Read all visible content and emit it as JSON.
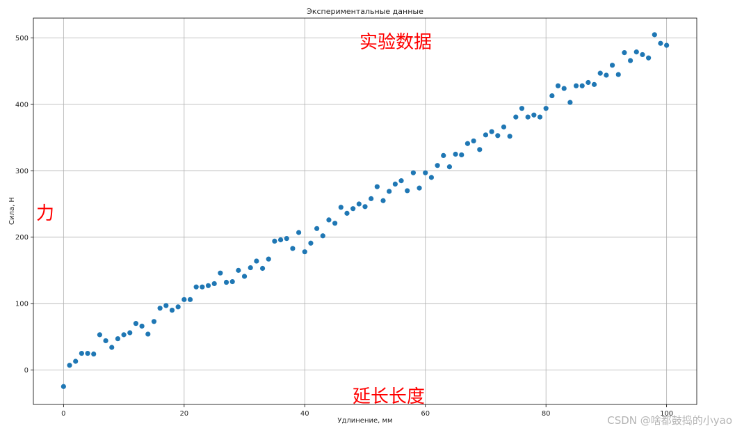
{
  "chart_data": {
    "type": "scatter",
    "title": "Экспериментальные данные",
    "xlabel": "Удлинение, мм",
    "ylabel": "Сила, Н",
    "xlim": [
      -5,
      105
    ],
    "ylim": [
      -52,
      530
    ],
    "xticks": [
      0,
      20,
      40,
      60,
      80,
      100
    ],
    "yticks": [
      0,
      100,
      200,
      300,
      400,
      500
    ],
    "grid": true,
    "color": "#1f77b4",
    "points": [
      {
        "x": 0,
        "y": -25
      },
      {
        "x": 1,
        "y": 7
      },
      {
        "x": 2,
        "y": 13
      },
      {
        "x": 3,
        "y": 25
      },
      {
        "x": 4,
        "y": 25
      },
      {
        "x": 5,
        "y": 24
      },
      {
        "x": 6,
        "y": 53
      },
      {
        "x": 7,
        "y": 44
      },
      {
        "x": 8,
        "y": 34
      },
      {
        "x": 9,
        "y": 47
      },
      {
        "x": 10,
        "y": 53
      },
      {
        "x": 11,
        "y": 56
      },
      {
        "x": 12,
        "y": 70
      },
      {
        "x": 13,
        "y": 66
      },
      {
        "x": 14,
        "y": 54
      },
      {
        "x": 15,
        "y": 73
      },
      {
        "x": 16,
        "y": 93
      },
      {
        "x": 17,
        "y": 97
      },
      {
        "x": 18,
        "y": 90
      },
      {
        "x": 19,
        "y": 95
      },
      {
        "x": 20,
        "y": 106
      },
      {
        "x": 21,
        "y": 106
      },
      {
        "x": 22,
        "y": 125
      },
      {
        "x": 23,
        "y": 125
      },
      {
        "x": 24,
        "y": 127
      },
      {
        "x": 25,
        "y": 130
      },
      {
        "x": 26,
        "y": 146
      },
      {
        "x": 27,
        "y": 132
      },
      {
        "x": 28,
        "y": 133
      },
      {
        "x": 29,
        "y": 150
      },
      {
        "x": 30,
        "y": 141
      },
      {
        "x": 31,
        "y": 154
      },
      {
        "x": 32,
        "y": 164
      },
      {
        "x": 33,
        "y": 153
      },
      {
        "x": 34,
        "y": 167
      },
      {
        "x": 35,
        "y": 194
      },
      {
        "x": 36,
        "y": 196
      },
      {
        "x": 37,
        "y": 198
      },
      {
        "x": 38,
        "y": 183
      },
      {
        "x": 39,
        "y": 207
      },
      {
        "x": 40,
        "y": 178
      },
      {
        "x": 41,
        "y": 191
      },
      {
        "x": 42,
        "y": 213
      },
      {
        "x": 43,
        "y": 202
      },
      {
        "x": 44,
        "y": 226
      },
      {
        "x": 45,
        "y": 221
      },
      {
        "x": 46,
        "y": 245
      },
      {
        "x": 47,
        "y": 236
      },
      {
        "x": 48,
        "y": 243
      },
      {
        "x": 49,
        "y": 250
      },
      {
        "x": 50,
        "y": 246
      },
      {
        "x": 51,
        "y": 258
      },
      {
        "x": 52,
        "y": 276
      },
      {
        "x": 53,
        "y": 255
      },
      {
        "x": 54,
        "y": 269
      },
      {
        "x": 55,
        "y": 280
      },
      {
        "x": 56,
        "y": 285
      },
      {
        "x": 57,
        "y": 270
      },
      {
        "x": 58,
        "y": 297
      },
      {
        "x": 59,
        "y": 274
      },
      {
        "x": 60,
        "y": 297
      },
      {
        "x": 61,
        "y": 290
      },
      {
        "x": 62,
        "y": 308
      },
      {
        "x": 63,
        "y": 323
      },
      {
        "x": 64,
        "y": 306
      },
      {
        "x": 65,
        "y": 325
      },
      {
        "x": 66,
        "y": 324
      },
      {
        "x": 67,
        "y": 341
      },
      {
        "x": 68,
        "y": 345
      },
      {
        "x": 69,
        "y": 332
      },
      {
        "x": 70,
        "y": 354
      },
      {
        "x": 71,
        "y": 359
      },
      {
        "x": 72,
        "y": 353
      },
      {
        "x": 73,
        "y": 366
      },
      {
        "x": 74,
        "y": 352
      },
      {
        "x": 75,
        "y": 381
      },
      {
        "x": 76,
        "y": 394
      },
      {
        "x": 77,
        "y": 381
      },
      {
        "x": 78,
        "y": 384
      },
      {
        "x": 79,
        "y": 381
      },
      {
        "x": 80,
        "y": 394
      },
      {
        "x": 81,
        "y": 413
      },
      {
        "x": 82,
        "y": 428
      },
      {
        "x": 83,
        "y": 424
      },
      {
        "x": 84,
        "y": 403
      },
      {
        "x": 85,
        "y": 428
      },
      {
        "x": 86,
        "y": 428
      },
      {
        "x": 87,
        "y": 433
      },
      {
        "x": 88,
        "y": 430
      },
      {
        "x": 89,
        "y": 447
      },
      {
        "x": 90,
        "y": 444
      },
      {
        "x": 91,
        "y": 459
      },
      {
        "x": 92,
        "y": 445
      },
      {
        "x": 93,
        "y": 478
      },
      {
        "x": 94,
        "y": 466
      },
      {
        "x": 95,
        "y": 479
      },
      {
        "x": 96,
        "y": 475
      },
      {
        "x": 97,
        "y": 470
      },
      {
        "x": 98,
        "y": 505
      },
      {
        "x": 99,
        "y": 492
      },
      {
        "x": 100,
        "y": 489
      }
    ]
  },
  "annotations": {
    "title_cn": "实验数据",
    "xlabel_cn": "延长长度",
    "ylabel_cn": "力"
  },
  "watermark": "CSDN @啥都鼓捣的小yao"
}
